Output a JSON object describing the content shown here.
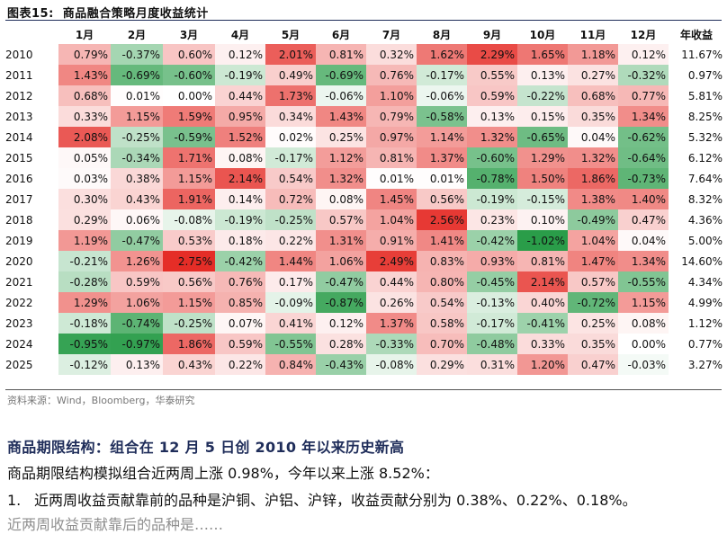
{
  "figure": {
    "title_label": "图表15:",
    "title_text": "商品融合策略月度收益统计"
  },
  "table": {
    "headers": [
      "",
      "1月",
      "2月",
      "3月",
      "4月",
      "5月",
      "6月",
      "7月",
      "8月",
      "9月",
      "10月",
      "11月",
      "12月",
      "年收益"
    ],
    "rows": [
      {
        "year": "2010",
        "cells": [
          "0.79%",
          "-0.37%",
          "0.60%",
          "0.12%",
          "2.01%",
          "0.81%",
          "0.32%",
          "1.62%",
          "2.29%",
          "1.65%",
          "1.18%",
          "0.12%"
        ],
        "annual": "11.67%"
      },
      {
        "year": "2011",
        "cells": [
          "1.43%",
          "-0.69%",
          "-0.60%",
          "-0.19%",
          "0.49%",
          "-0.69%",
          "0.76%",
          "-0.17%",
          "0.55%",
          "0.13%",
          "0.27%",
          "-0.32%"
        ],
        "annual": "0.97%"
      },
      {
        "year": "2012",
        "cells": [
          "0.68%",
          "0.01%",
          "0.00%",
          "0.44%",
          "1.73%",
          "-0.06%",
          "1.10%",
          "-0.06%",
          "0.59%",
          "-0.22%",
          "0.68%",
          "0.77%"
        ],
        "annual": "5.81%"
      },
      {
        "year": "2013",
        "cells": [
          "0.33%",
          "1.15%",
          "1.59%",
          "0.95%",
          "0.34%",
          "1.43%",
          "0.79%",
          "-0.58%",
          "0.13%",
          "0.15%",
          "0.35%",
          "1.34%"
        ],
        "annual": "8.25%"
      },
      {
        "year": "2014",
        "cells": [
          "2.08%",
          "-0.25%",
          "-0.59%",
          "1.52%",
          "0.02%",
          "0.25%",
          "0.97%",
          "1.14%",
          "1.32%",
          "-0.65%",
          "0.04%",
          "-0.62%"
        ],
        "annual": "5.32%"
      },
      {
        "year": "2015",
        "cells": [
          "0.05%",
          "-0.34%",
          "1.71%",
          "0.08%",
          "-0.17%",
          "1.12%",
          "0.81%",
          "1.37%",
          "-0.60%",
          "1.29%",
          "1.32%",
          "-0.64%"
        ],
        "annual": "6.12%"
      },
      {
        "year": "2016",
        "cells": [
          "0.03%",
          "0.38%",
          "1.15%",
          "2.14%",
          "0.54%",
          "1.32%",
          "0.01%",
          "0.01%",
          "-0.78%",
          "1.50%",
          "1.86%",
          "-0.73%"
        ],
        "annual": "7.64%"
      },
      {
        "year": "2017",
        "cells": [
          "0.30%",
          "0.43%",
          "1.91%",
          "0.14%",
          "0.72%",
          "0.08%",
          "1.45%",
          "0.56%",
          "-0.19%",
          "-0.15%",
          "1.38%",
          "1.40%"
        ],
        "annual": "8.32%"
      },
      {
        "year": "2018",
        "cells": [
          "0.29%",
          "0.06%",
          "-0.08%",
          "-0.19%",
          "-0.25%",
          "0.57%",
          "1.04%",
          "2.56%",
          "0.23%",
          "0.10%",
          "-0.49%",
          "0.47%"
        ],
        "annual": "4.36%"
      },
      {
        "year": "2019",
        "cells": [
          "1.19%",
          "-0.47%",
          "0.53%",
          "0.18%",
          "0.22%",
          "1.31%",
          "0.91%",
          "1.41%",
          "-0.42%",
          "-1.02%",
          "1.04%",
          "0.04%"
        ],
        "annual": "5.00%"
      },
      {
        "year": "2020",
        "cells": [
          "-0.21%",
          "1.26%",
          "2.75%",
          "-0.42%",
          "1.44%",
          "1.06%",
          "2.49%",
          "0.83%",
          "0.93%",
          "0.81%",
          "1.47%",
          "1.34%"
        ],
        "annual": "14.60%"
      },
      {
        "year": "2021",
        "cells": [
          "-0.28%",
          "0.59%",
          "0.56%",
          "0.76%",
          "0.17%",
          "-0.47%",
          "0.44%",
          "0.80%",
          "-0.45%",
          "2.14%",
          "0.57%",
          "-0.55%"
        ],
        "annual": "4.34%"
      },
      {
        "year": "2022",
        "cells": [
          "1.29%",
          "1.06%",
          "1.15%",
          "0.85%",
          "-0.09%",
          "-0.87%",
          "0.26%",
          "0.54%",
          "-0.13%",
          "0.40%",
          "-0.72%",
          "1.15%"
        ],
        "annual": "4.99%"
      },
      {
        "year": "2023",
        "cells": [
          "-0.18%",
          "-0.74%",
          "-0.25%",
          "0.07%",
          "0.41%",
          "0.12%",
          "1.37%",
          "0.58%",
          "-0.17%",
          "-0.41%",
          "0.25%",
          "0.08%"
        ],
        "annual": "1.12%"
      },
      {
        "year": "2024",
        "cells": [
          "-0.95%",
          "-0.97%",
          "1.86%",
          "0.59%",
          "-0.55%",
          "0.28%",
          "-0.33%",
          "0.70%",
          "-0.48%",
          "0.33%",
          "0.35%",
          "0.00%"
        ],
        "annual": "0.77%"
      },
      {
        "year": "2025",
        "cells": [
          "-0.12%",
          "0.13%",
          "0.43%",
          "0.22%",
          "0.84%",
          "-0.43%",
          "-0.08%",
          "0.29%",
          "0.31%",
          "1.20%",
          "0.47%",
          "-0.03%"
        ],
        "annual": "3.27%"
      }
    ]
  },
  "colors": {
    "positive_max": "#e52d27",
    "negative_max": "#2a9d49",
    "neutral": "#ffffff",
    "title_blue": "#1f2d5a"
  },
  "source_text": "资料来源：Wind，Bloomberg，华泰研究",
  "section": {
    "title": "商品期限结构：组合在 12 月 5 日创 2010 年以来历史新高",
    "paragraph": "商品期限结构模拟组合近两周上涨 0.98%，今年以来上涨 8.52%：",
    "item1_num": "1.",
    "item1_text": "近两周收益贡献靠前的品种是沪铜、沪铝、沪锌，收益贡献分别为 0.38%、0.22%、0.18%。",
    "cut_text": "    近两周收益贡献靠后的品种是……"
  }
}
